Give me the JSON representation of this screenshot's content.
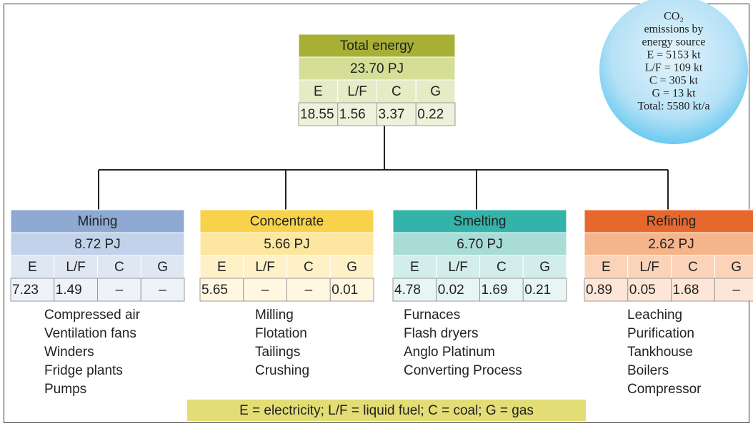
{
  "total": {
    "title": "Total energy",
    "value": "23.70 PJ",
    "headers": [
      "E",
      "L/F",
      "C",
      "G"
    ],
    "values": [
      "18.55",
      "1.56",
      "3.37",
      "0.22"
    ]
  },
  "sectors": [
    {
      "title": "Mining",
      "value": "8.72 PJ",
      "headers": [
        "E",
        "L/F",
        "C",
        "G"
      ],
      "values": [
        "7.23",
        "1.49",
        "–",
        "–"
      ],
      "items": [
        "Compressed air",
        "Ventilation fans",
        "Winders",
        "Fridge plants",
        "Pumps"
      ]
    },
    {
      "title": "Concentrate",
      "value": "5.66 PJ",
      "headers": [
        "E",
        "L/F",
        "C",
        "G"
      ],
      "values": [
        "5.65",
        "–",
        "–",
        "0.01"
      ],
      "items": [
        "Milling",
        "Flotation",
        "Tailings",
        "Crushing"
      ]
    },
    {
      "title": "Smelting",
      "value": "6.70 PJ",
      "headers": [
        "E",
        "L/F",
        "C",
        "G"
      ],
      "values": [
        "4.78",
        "0.02",
        "1.69",
        "0.21"
      ],
      "items": [
        "Furnaces",
        "Flash dryers",
        "Anglo Platinum",
        "Converting Process"
      ]
    },
    {
      "title": "Refining",
      "value": "2.62 PJ",
      "headers": [
        "E",
        "L/F",
        "C",
        "G"
      ],
      "values": [
        "0.89",
        "0.05",
        "1.68",
        "–"
      ],
      "items": [
        "Leaching",
        "Purification",
        "Tankhouse",
        "Boilers",
        "Compressor"
      ]
    }
  ],
  "co2": {
    "lines": [
      "CO₂",
      "emissions by",
      "energy source",
      "E = 5153 kt",
      "L/F = 109 kt",
      "C = 305 kt",
      "G = 13 kt",
      "Total: 5580 kt/a"
    ]
  },
  "legend": "E = electricity; L/F = liquid fuel; C = coal; G = gas"
}
